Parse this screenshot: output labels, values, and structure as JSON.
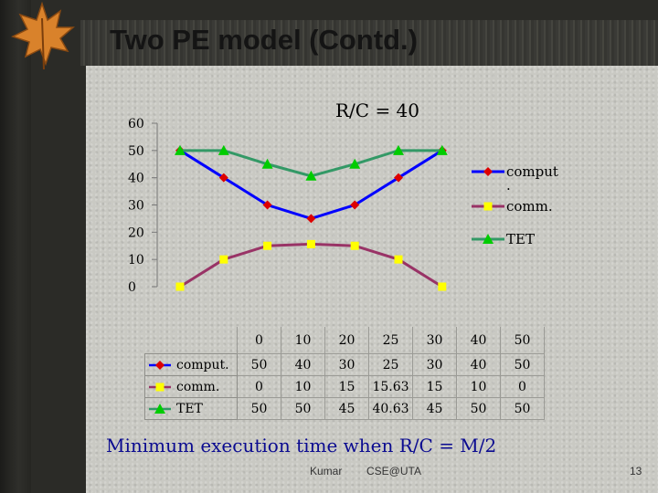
{
  "slide": {
    "title": "Two PE model (Contd.)",
    "conclusion": "Minimum execution time when R/C = M/2",
    "footer_author": "Kumar",
    "footer_center": "CSE@UTA",
    "page_number": "13"
  },
  "chart_data": {
    "type": "line",
    "title": "R/C = 40",
    "xlabel": "",
    "ylabel": "",
    "x": [
      "0",
      "10",
      "20",
      "25",
      "30",
      "40",
      "50"
    ],
    "ylim": [
      0,
      60
    ],
    "y_ticks": [
      "0",
      "10",
      "20",
      "30",
      "40",
      "50",
      "60"
    ],
    "grid": false,
    "legend_position": "right",
    "series": [
      {
        "name": "comput.",
        "color": "#0000ff",
        "marker": "diamond",
        "marker_color": "#dd0000",
        "values": [
          50,
          40,
          30,
          25,
          30,
          40,
          50
        ]
      },
      {
        "name": "comm.",
        "color": "#993366",
        "marker": "square",
        "marker_color": "#ffff00",
        "values": [
          0,
          10,
          15,
          15.63,
          15,
          10,
          0
        ]
      },
      {
        "name": "TET",
        "color": "#339966",
        "marker": "triangle",
        "marker_color": "#00cc00",
        "values": [
          50,
          50,
          45,
          40.63,
          45,
          50,
          50
        ]
      }
    ],
    "table_rows": [
      [
        "50",
        "40",
        "30",
        "25",
        "30",
        "40",
        "50"
      ],
      [
        "0",
        "10",
        "15",
        "15.63",
        "15",
        "10",
        "0"
      ],
      [
        "50",
        "50",
        "45",
        "40.63",
        "45",
        "50",
        "50"
      ]
    ]
  }
}
